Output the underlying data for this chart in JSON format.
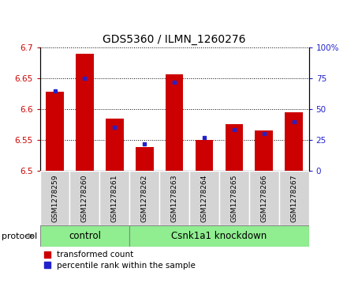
{
  "title": "GDS5360 / ILMN_1260276",
  "samples": [
    "GSM1278259",
    "GSM1278260",
    "GSM1278261",
    "GSM1278262",
    "GSM1278263",
    "GSM1278264",
    "GSM1278265",
    "GSM1278266",
    "GSM1278267"
  ],
  "red_values": [
    6.628,
    6.69,
    6.585,
    6.538,
    6.656,
    6.55,
    6.575,
    6.565,
    6.595
  ],
  "blue_values": [
    65,
    75,
    35,
    22,
    72,
    27,
    33,
    30,
    40
  ],
  "ylim_left": [
    6.5,
    6.7
  ],
  "ylim_right": [
    0,
    100
  ],
  "yticks_left": [
    6.5,
    6.55,
    6.6,
    6.65,
    6.7
  ],
  "yticks_right": [
    0,
    25,
    50,
    75,
    100
  ],
  "ytick_labels_right": [
    "0",
    "25",
    "50",
    "75",
    "100%"
  ],
  "bar_color_red": "#cc0000",
  "bar_color_blue": "#2222cc",
  "bar_width": 0.6,
  "control_samples": 3,
  "knockdown_samples": 6,
  "group_label": "protocol",
  "group_control": "control",
  "group_knockdown": "Csnk1a1 knockdown",
  "group_color": "#90ee90",
  "legend_red": "transformed count",
  "legend_blue": "percentile rank within the sample",
  "axis_label_color_left": "#cc0000",
  "axis_label_color_right": "#2222cc",
  "title_fontsize": 10,
  "tick_fontsize": 7.5,
  "legend_fontsize": 7.5,
  "sample_fontsize": 6.5
}
